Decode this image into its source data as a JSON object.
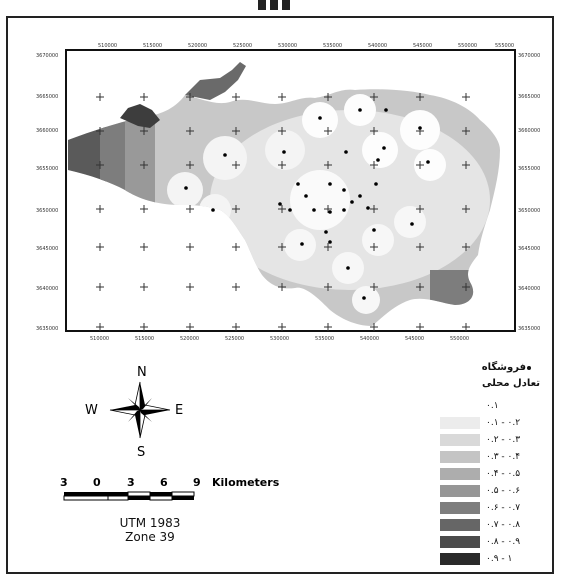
{
  "x_tick_labels": [
    "510000",
    "515000",
    "520000",
    "525000",
    "530000",
    "535000",
    "540000",
    "545000",
    "550000",
    "555000"
  ],
  "y_tick_labels_left": [
    "3670000",
    "3665000",
    "3660000",
    "3655000",
    "3650000",
    "3645000",
    "3640000",
    "3635000"
  ],
  "y_tick_labels_right": [
    "3670000",
    "3665000",
    "3660000",
    "3655000",
    "3650000",
    "3645000",
    "3640000",
    "3635000"
  ],
  "legend": {
    "point_label": "فروشگاه",
    "ramp_title": "تعادل محلی",
    "classes": [
      {
        "label": "۰.۱",
        "color": "#ffffff"
      },
      {
        "label": "۰.۱ - ۰.۲",
        "color": "#ececec"
      },
      {
        "label": "۰.۲ - ۰.۳",
        "color": "#d9d9d9"
      },
      {
        "label": "۰.۳ - ۰.۴",
        "color": "#c4c4c4"
      },
      {
        "label": "۰.۴ - ۰.۵",
        "color": "#adadad"
      },
      {
        "label": "۰.۵ - ۰.۶",
        "color": "#969696"
      },
      {
        "label": "۰.۶ - ۰.۷",
        "color": "#7e7e7e"
      },
      {
        "label": "۰.۷ - ۰.۸",
        "color": "#666666"
      },
      {
        "label": "۰.۸ - ۰.۹",
        "color": "#4b4b4b"
      },
      {
        "label": "۰.۹ - ۱",
        "color": "#2a2a2a"
      }
    ]
  },
  "compass": {
    "n": "N",
    "s": "S",
    "e": "E",
    "w": "W"
  },
  "scale_bar": {
    "ticks": [
      "3",
      "0",
      "3",
      "6",
      "9"
    ],
    "unit": "Kilometers"
  },
  "projection": {
    "line1": "UTM 1983",
    "line2": "Zone 39"
  }
}
